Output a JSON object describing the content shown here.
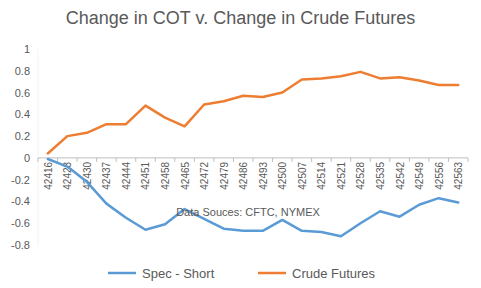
{
  "chart_data": {
    "type": "line",
    "title": "Change in COT v. Change in Crude Futures",
    "annotation": "Data Souces: CFTC, NYMEX",
    "categories": [
      "42416",
      "42423",
      "42430",
      "42437",
      "42444",
      "42451",
      "42458",
      "42465",
      "42472",
      "42479",
      "42486",
      "42493",
      "42500",
      "42507",
      "42514",
      "42521",
      "42528",
      "42535",
      "42542",
      "42549",
      "42556",
      "42563"
    ],
    "series": [
      {
        "name": "Spec - Short",
        "color": "#5b9bd5",
        "values": [
          -0.01,
          -0.08,
          -0.22,
          -0.42,
          -0.55,
          -0.66,
          -0.61,
          -0.47,
          -0.56,
          -0.65,
          -0.67,
          -0.67,
          -0.57,
          -0.67,
          -0.68,
          -0.72,
          -0.6,
          -0.49,
          -0.54,
          -0.43,
          -0.37,
          -0.41
        ]
      },
      {
        "name": "Crude Futures",
        "color": "#ed7d31",
        "values": [
          0.04,
          0.2,
          0.23,
          0.31,
          0.31,
          0.48,
          0.37,
          0.29,
          0.49,
          0.52,
          0.57,
          0.56,
          0.6,
          0.72,
          0.73,
          0.75,
          0.79,
          0.73,
          0.74,
          0.71,
          0.67,
          0.67
        ]
      }
    ],
    "ylim": [
      -0.8,
      1
    ],
    "yticks": [
      -0.8,
      -0.6,
      -0.4,
      -0.2,
      0,
      0.2,
      0.4,
      0.6,
      0.8,
      1
    ],
    "grid": false,
    "legend": "bottom"
  }
}
